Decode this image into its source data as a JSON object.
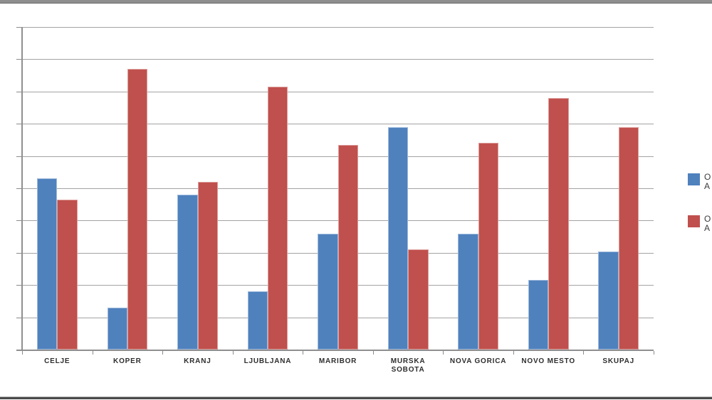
{
  "window": {
    "background": "#ffffff",
    "top_strip_color": "#8e8e8e",
    "bottom_strip_color": "#4a4a4a"
  },
  "chart_data": {
    "type": "bar",
    "title": "",
    "xlabel": "",
    "ylabel": "",
    "categories": [
      "CELJE",
      "KOPER",
      "KRANJ",
      "LJUBLJANA",
      "MARIBOR",
      "MURSKA SOBOTA",
      "NOVA GORICA",
      "NOVO MESTO",
      "SKUPAJ"
    ],
    "series": [
      {
        "name_visible_fragment": "O",
        "color": "#4F81BD",
        "values": [
          53,
          13,
          48,
          18,
          36,
          69,
          36,
          21.5,
          30.5
        ]
      },
      {
        "name_visible_fragment": "O",
        "color": "#C0504D",
        "values": [
          46.5,
          87,
          52,
          81.5,
          63.5,
          31,
          64,
          78,
          69
        ]
      }
    ],
    "ylim": [
      0,
      100
    ],
    "y_step": 10,
    "grid": true,
    "y_tick_labels_visible": false,
    "legend_position": "right",
    "legend_clipped_at_edge": true
  },
  "legend": {
    "items": [
      {
        "color": "#4F81BD",
        "label_fragment_line1": "O",
        "label_fragment_line2": "A"
      },
      {
        "color": "#C0504D",
        "label_fragment_line1": "O",
        "label_fragment_line2": "A"
      }
    ]
  }
}
